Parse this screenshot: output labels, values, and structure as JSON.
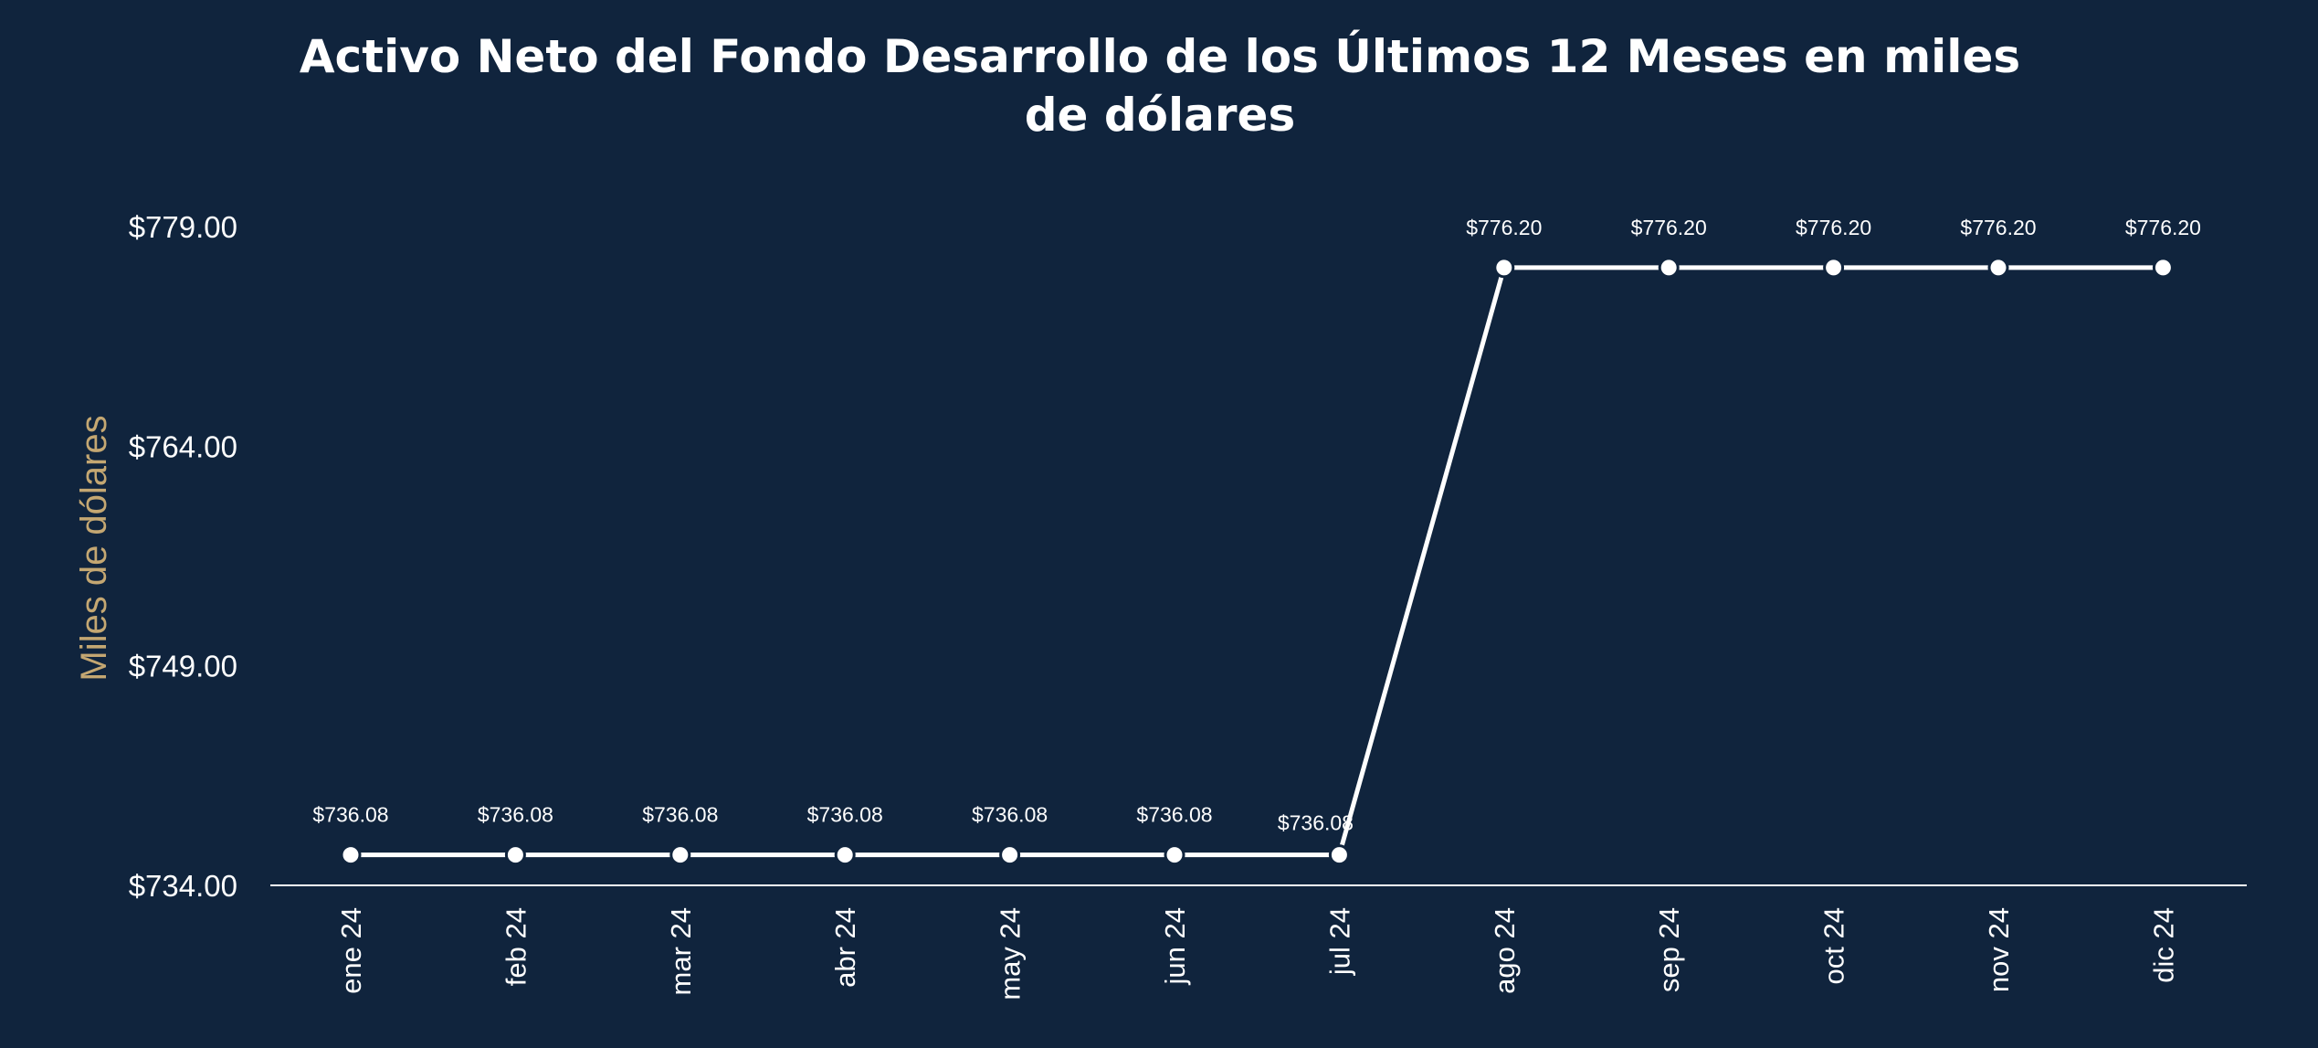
{
  "chart_data": {
    "type": "line",
    "title": "Activo Neto del Fondo Desarrollo de los Últimos 12 Meses en miles de dólares",
    "xlabel": "",
    "ylabel": "Miles de dólares",
    "categories": [
      "ene 24",
      "feb 24",
      "mar 24",
      "abr 24",
      "may 24",
      "jun 24",
      "jul 24",
      "ago 24",
      "sep 24",
      "oct 24",
      "nov 24",
      "dic 24"
    ],
    "series": [
      {
        "values": [
          736.08,
          736.08,
          736.08,
          736.08,
          736.08,
          736.08,
          736.08,
          776.2,
          776.2,
          776.2,
          776.2,
          776.2
        ]
      }
    ],
    "data_labels": [
      "$736.08",
      "$736.08",
      "$736.08",
      "$736.08",
      "$736.08",
      "$736.08",
      "$736.08",
      "$776.20",
      "$776.20",
      "$776.20",
      "$776.20",
      "$776.20"
    ],
    "ylim": [
      734,
      779
    ],
    "yticks": [
      734,
      749,
      764,
      779
    ],
    "ytick_labels": [
      "$734.00",
      "$749.00",
      "$764.00",
      "$779.00"
    ],
    "grid": false,
    "legend": "none",
    "colors": {
      "background": "#10243d",
      "line": "#ffffff",
      "marker_fill": "#ffffff",
      "marker_stroke": "#10243d",
      "ylabel": "#c4a772"
    }
  }
}
